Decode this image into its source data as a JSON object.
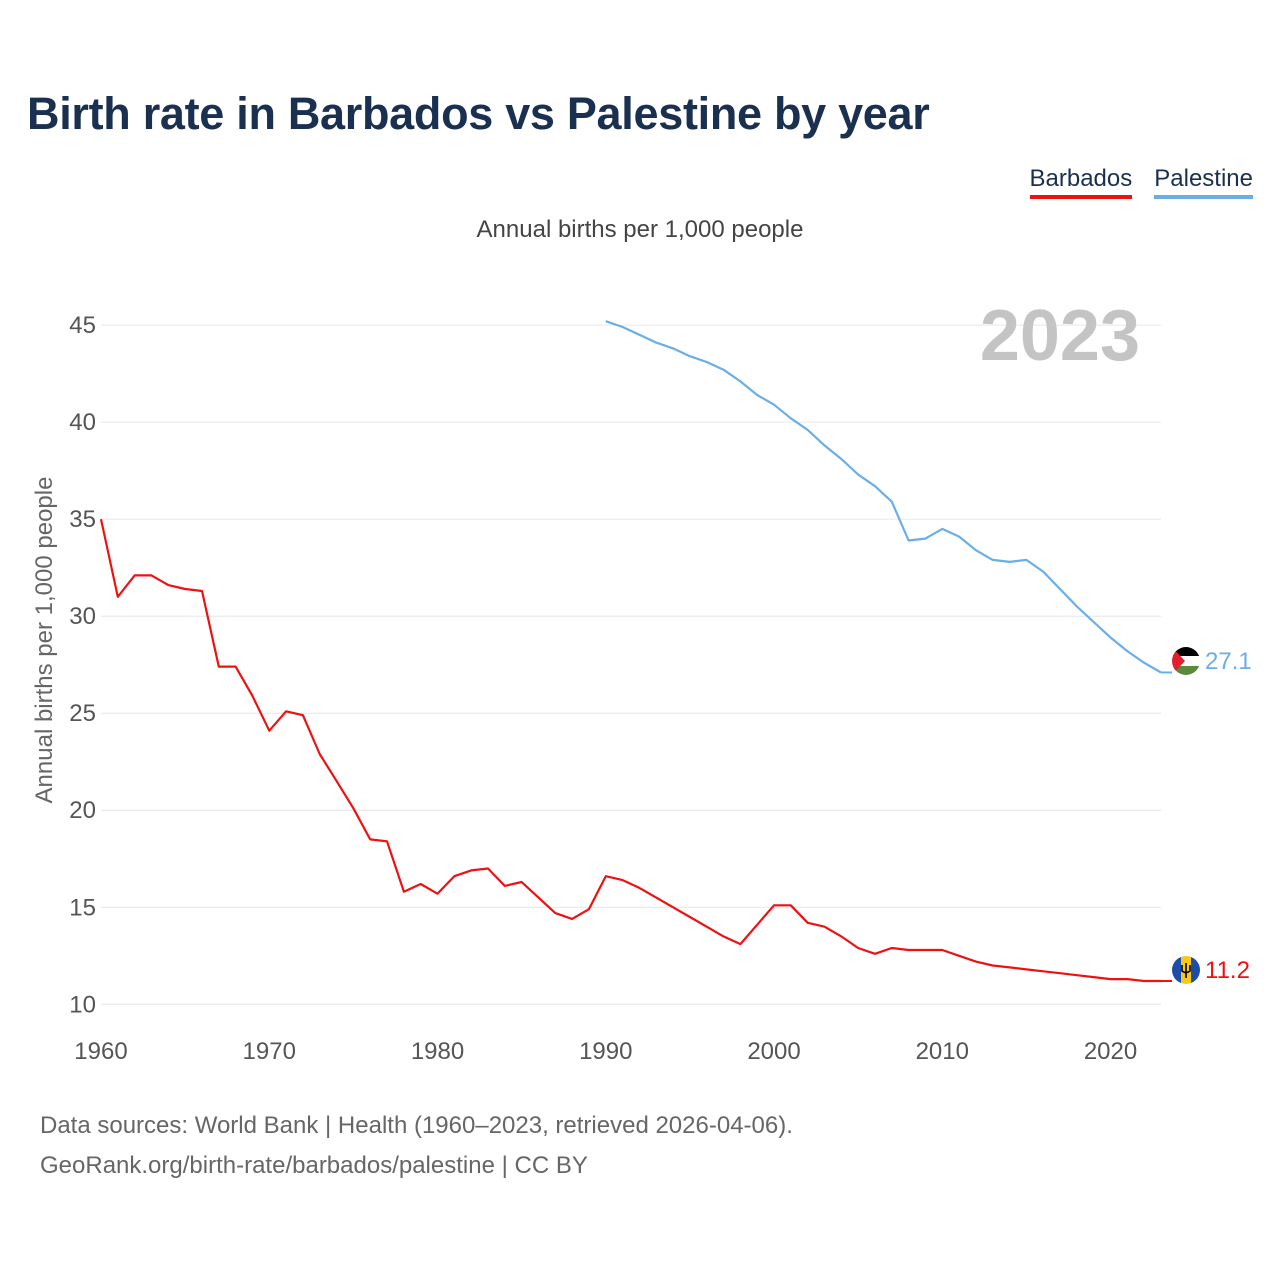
{
  "title": "Birth rate in Barbados vs Palestine by year",
  "subtitle": "Annual births per 1,000 people",
  "legend": [
    {
      "label": "Barbados",
      "color": "#ee1111"
    },
    {
      "label": "Palestine",
      "color": "#6aaee8"
    }
  ],
  "year_watermark": "2023",
  "footer": {
    "line1": "Data sources: World Bank | Health (1960–2023, retrieved 2026-04-06).",
    "line2": "GeoRank.org/birth-rate/barbados/palestine | CC BY"
  },
  "chart_data": {
    "type": "line",
    "title": "Birth rate in Barbados vs Palestine by year",
    "ylabel": "Annual births per 1,000 people",
    "xlabel": "",
    "xlim": [
      1960,
      2023
    ],
    "ylim": [
      9.5,
      46.5
    ],
    "x_ticks": [
      1960,
      1970,
      1980,
      1990,
      2000,
      2010,
      2020
    ],
    "y_ticks": [
      10,
      15,
      20,
      25,
      30,
      35,
      40,
      45
    ],
    "grid": true,
    "series": [
      {
        "name": "Barbados",
        "color": "#ee1111",
        "end_label": "11.2",
        "x": [
          1960,
          1961,
          1962,
          1963,
          1964,
          1965,
          1966,
          1967,
          1968,
          1969,
          1970,
          1971,
          1972,
          1973,
          1974,
          1975,
          1976,
          1977,
          1978,
          1979,
          1980,
          1981,
          1982,
          1983,
          1984,
          1985,
          1986,
          1987,
          1988,
          1989,
          1990,
          1991,
          1992,
          1993,
          1994,
          1995,
          1996,
          1997,
          1998,
          1999,
          2000,
          2001,
          2002,
          2003,
          2004,
          2005,
          2006,
          2007,
          2008,
          2009,
          2010,
          2011,
          2012,
          2013,
          2014,
          2015,
          2016,
          2017,
          2018,
          2019,
          2020,
          2021,
          2022,
          2023
        ],
        "values": [
          35.0,
          31.0,
          32.1,
          32.1,
          31.6,
          31.4,
          31.3,
          27.4,
          27.4,
          25.9,
          24.1,
          25.1,
          24.9,
          22.9,
          21.5,
          20.1,
          18.5,
          18.4,
          15.8,
          16.2,
          15.7,
          16.6,
          16.9,
          17.0,
          16.1,
          16.3,
          15.5,
          14.7,
          14.4,
          14.9,
          16.6,
          16.4,
          16.0,
          15.5,
          15.0,
          14.5,
          14.0,
          13.5,
          13.1,
          14.1,
          15.1,
          15.1,
          14.2,
          14.0,
          13.5,
          12.9,
          12.6,
          12.9,
          12.8,
          12.8,
          12.8,
          12.5,
          12.2,
          12.0,
          11.9,
          11.8,
          11.7,
          11.6,
          11.5,
          11.4,
          11.3,
          11.3,
          11.2,
          11.2
        ]
      },
      {
        "name": "Palestine",
        "color": "#6aaee8",
        "end_label": "27.1",
        "x": [
          1990,
          1991,
          1992,
          1993,
          1994,
          1995,
          1996,
          1997,
          1998,
          1999,
          2000,
          2001,
          2002,
          2003,
          2004,
          2005,
          2006,
          2007,
          2008,
          2009,
          2010,
          2011,
          2012,
          2013,
          2014,
          2015,
          2016,
          2017,
          2018,
          2019,
          2020,
          2021,
          2022,
          2023
        ],
        "values": [
          45.2,
          44.9,
          44.5,
          44.1,
          43.8,
          43.4,
          43.1,
          42.7,
          42.1,
          41.4,
          40.9,
          40.2,
          39.6,
          38.8,
          38.1,
          37.3,
          36.7,
          35.9,
          33.9,
          34.0,
          34.5,
          34.1,
          33.4,
          32.9,
          32.8,
          32.9,
          32.3,
          31.4,
          30.5,
          29.7,
          28.9,
          28.2,
          27.6,
          27.1
        ]
      }
    ]
  }
}
